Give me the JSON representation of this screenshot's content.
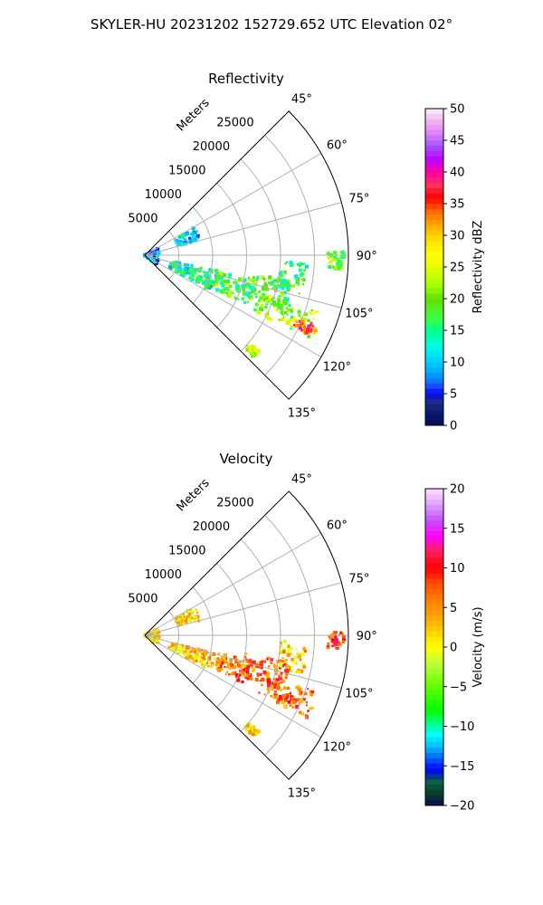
{
  "figure": {
    "suptitle": "SKYLER-HU  20231202  152729.652 UTC Elevation 02°"
  },
  "chart_data": [
    {
      "type": "heatmap",
      "subtype": "polar-sector PPI",
      "title": "Reflectivity",
      "radial_axis_label": "Meters",
      "radial_ticks": [
        "5000",
        "10000",
        "15000",
        "20000",
        "25000"
      ],
      "angular_ticks": [
        "45°",
        "60°",
        "75°",
        "90°",
        "105°",
        "120°",
        "135°"
      ],
      "azimuth_range_deg": [
        45,
        135
      ],
      "range_max_m": 30000,
      "grid": true,
      "colorbar": {
        "label": "Reflectivity dBZ",
        "range": [
          0,
          50
        ],
        "ticks": [
          "0",
          "5",
          "10",
          "15",
          "20",
          "25",
          "30",
          "35",
          "40",
          "45",
          "50"
        ],
        "placement": "right"
      },
      "echo_cells": [
        {
          "azimuth_deg": [
            62,
            128
          ],
          "range_m": [
            0,
            2200
          ],
          "dBZ": 8
        },
        {
          "azimuth_deg": [
            60,
            75
          ],
          "range_m": [
            5000,
            8500
          ],
          "dBZ": 12
        },
        {
          "azimuth_deg": [
            102,
            118
          ],
          "range_m": [
            4000,
            11000
          ],
          "dBZ": 14
        },
        {
          "azimuth_deg": [
            103,
            116
          ],
          "range_m": [
            11000,
            17000
          ],
          "dBZ": 18
        },
        {
          "azimuth_deg": [
            100,
            112
          ],
          "range_m": [
            15000,
            22000
          ],
          "dBZ": 17
        },
        {
          "azimuth_deg": [
            108,
            117
          ],
          "range_m": [
            18000,
            27000
          ],
          "dBZ": 21
        },
        {
          "azimuth_deg": [
            112,
            116
          ],
          "range_m": [
            24000,
            27500
          ],
          "dBZ": 34
        },
        {
          "azimuth_deg": [
            92,
            104
          ],
          "range_m": [
            20000,
            24000
          ],
          "dBZ": 16
        },
        {
          "azimuth_deg": [
            89,
            94
          ],
          "range_m": [
            27000,
            29500
          ],
          "dBZ": 20
        },
        {
          "azimuth_deg": [
            130,
            133
          ],
          "range_m": [
            20000,
            22000
          ],
          "dBZ": 22
        }
      ]
    },
    {
      "type": "heatmap",
      "subtype": "polar-sector PPI",
      "title": "Velocity",
      "radial_axis_label": "Meters",
      "radial_ticks": [
        "5000",
        "10000",
        "15000",
        "20000",
        "25000"
      ],
      "angular_ticks": [
        "45°",
        "60°",
        "75°",
        "90°",
        "105°",
        "120°",
        "135°"
      ],
      "azimuth_range_deg": [
        45,
        135
      ],
      "range_max_m": 30000,
      "grid": true,
      "colorbar": {
        "label": "Velocity (m/s)",
        "range": [
          -20,
          20
        ],
        "ticks": [
          "−20",
          "−15",
          "−10",
          "−5",
          "0",
          "5",
          "10",
          "15",
          "20"
        ],
        "placement": "right"
      },
      "echo_cells": [
        {
          "azimuth_deg": [
            62,
            128
          ],
          "range_m": [
            0,
            2200
          ],
          "velocity_ms": 1
        },
        {
          "azimuth_deg": [
            60,
            75
          ],
          "range_m": [
            5000,
            8500
          ],
          "velocity_ms": 2
        },
        {
          "azimuth_deg": [
            104,
            118
          ],
          "range_m": [
            4000,
            11000
          ],
          "velocity_ms": 3
        },
        {
          "azimuth_deg": [
            103,
            116
          ],
          "range_m": [
            11000,
            17000
          ],
          "velocity_ms": 6
        },
        {
          "azimuth_deg": [
            100,
            112
          ],
          "range_m": [
            15000,
            22000
          ],
          "velocity_ms": 8
        },
        {
          "azimuth_deg": [
            108,
            117
          ],
          "range_m": [
            18000,
            27000
          ],
          "velocity_ms": 7
        },
        {
          "azimuth_deg": [
            92,
            104
          ],
          "range_m": [
            20000,
            24000
          ],
          "velocity_ms": 2
        },
        {
          "azimuth_deg": [
            89,
            94
          ],
          "range_m": [
            27000,
            29500
          ],
          "velocity_ms": 9
        },
        {
          "azimuth_deg": [
            130,
            133
          ],
          "range_m": [
            20000,
            22000
          ],
          "velocity_ms": 2
        }
      ]
    }
  ]
}
